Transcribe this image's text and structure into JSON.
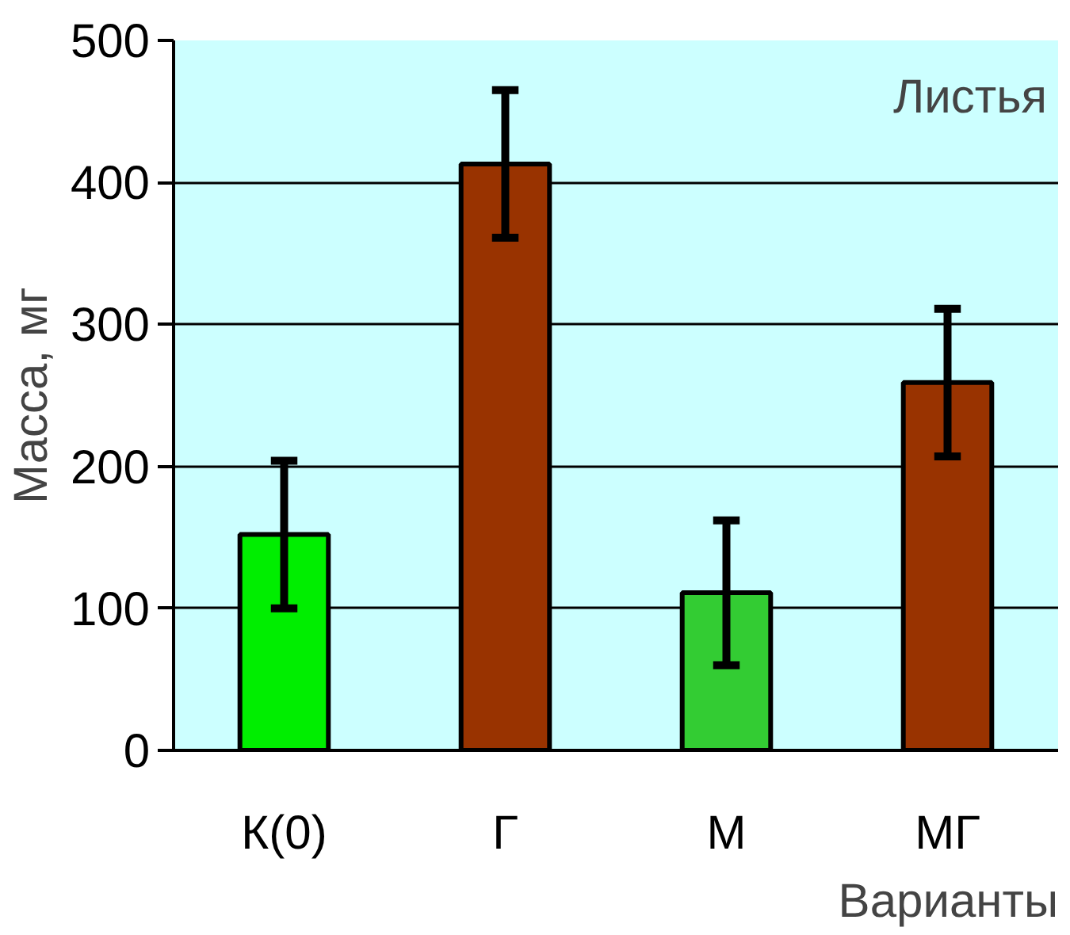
{
  "chart_data": {
    "type": "bar",
    "xlabel": "Варианты",
    "ylabel": "Масса, мг",
    "categories": [
      "К(0)",
      "Г",
      "М",
      "МГ"
    ],
    "values": [
      152,
      413,
      111,
      259
    ],
    "errors": [
      52,
      52,
      51,
      52
    ],
    "colors": [
      "#00ee00",
      "#993300",
      "#33cc33",
      "#993300"
    ],
    "ylim": [
      0,
      500
    ],
    "yticks": [
      0,
      100,
      200,
      300,
      400,
      500
    ],
    "grid": "y",
    "annotations": [
      "Листья"
    ]
  }
}
